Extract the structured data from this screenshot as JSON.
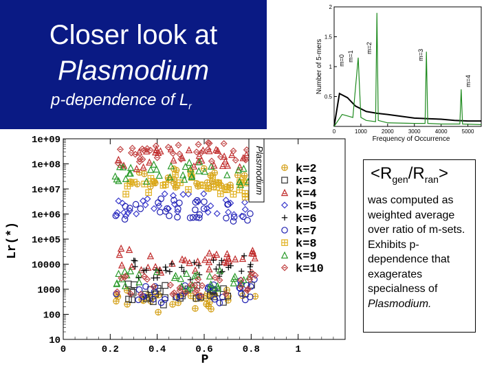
{
  "slide": {
    "title_line1": "Closer look at",
    "title_line2": "Plasmodium",
    "subtitle_main": "p-dependence of L",
    "subtitle_sub": "r",
    "ratio_prefix": "<R",
    "ratio_sub1": "gen",
    "ratio_mid": "/R",
    "ratio_sub2": "ran",
    "ratio_suffix": ">",
    "description": "was computed as weighted average over ratio of m-sets. Exhibits p-dependence that exagerates specialness of",
    "description_em": "Plasmodium."
  },
  "colors": {
    "title_bg": "#0a1a84",
    "k2": "#d4a017",
    "k3": "#2f2f2f",
    "k4": "#c02a2a",
    "k5": "#3a3acc",
    "k6": "#000000",
    "k7": "#1d1db0",
    "k8": "#e0b020",
    "k9": "#2a9a2a",
    "k10": "#c04040"
  },
  "chart_data": [
    {
      "type": "scatter",
      "xlabel": "P",
      "ylabel": "Lr(*)",
      "xlim": [
        0,
        1.2
      ],
      "ylim": [
        10,
        1000000000
      ],
      "yscale": "log",
      "x_ticks": [
        "0",
        "0.2",
        "0.4",
        "0.6",
        "0.8",
        "1"
      ],
      "y_ticks": [
        "1e+09",
        "1e+08",
        "1e+07",
        "1e+06",
        "1e+05",
        "10000",
        "1000",
        "100",
        "10"
      ],
      "annotation": "Plasmodium",
      "legend": [
        "k=2",
        "k=3",
        "k=4",
        "k=5",
        "k=6",
        "k=7",
        "k=8",
        "k=9",
        "k=10"
      ],
      "legend_placement": "right",
      "series": [
        {
          "name": "k=2",
          "symbol": "circle-cross",
          "color_key": "k2",
          "center_log": [
            7.2,
            2.7
          ]
        },
        {
          "name": "k=3",
          "symbol": "square",
          "color_key": "k3",
          "center_log": [
            3.0
          ]
        },
        {
          "name": "k=4",
          "symbol": "triangle-hatched",
          "color_key": "k4",
          "center_log": [
            8.0,
            4.3
          ]
        },
        {
          "name": "k=5",
          "symbol": "diamond",
          "color_key": "k5",
          "center_log": [
            6.2
          ]
        },
        {
          "name": "k=6",
          "symbol": "dash",
          "color_key": "k6",
          "center_log": [
            4.0
          ]
        },
        {
          "name": "k=7",
          "symbol": "open-circle",
          "color_key": "k7",
          "center_log": [
            6.0,
            3.0
          ]
        },
        {
          "name": "k=8",
          "symbol": "hatched-square",
          "color_key": "k8",
          "center_log": [
            7.0
          ]
        },
        {
          "name": "k=9",
          "symbol": "triangle",
          "color_key": "k9",
          "center_log": [
            7.5,
            3.6
          ]
        },
        {
          "name": "k=10",
          "symbol": "diamond-cross",
          "color_key": "k10",
          "center_log": [
            8.3,
            3.3
          ]
        }
      ]
    },
    {
      "type": "line",
      "xlabel": "Frequency of Occurrence",
      "ylabel": "Number of 5-mers",
      "xlim": [
        0,
        5500
      ],
      "ylim": [
        0,
        2
      ],
      "x_ticks": [
        "0",
        "1000",
        "2000",
        "3000",
        "4000",
        "5000"
      ],
      "y_ticks": [
        "2",
        "1.5",
        "1",
        "0.5"
      ],
      "annotations": [
        "m=0",
        "m=1",
        "m=2",
        "m=3",
        "m=4"
      ],
      "series": [
        {
          "name": "black",
          "color": "#000000",
          "x": [
            0,
            200,
            500,
            800,
            1200,
            1600,
            2000,
            2500,
            3000,
            3500,
            4000,
            4500,
            5000,
            5500
          ],
          "y": [
            0,
            0.55,
            0.48,
            0.34,
            0.25,
            0.22,
            0.2,
            0.17,
            0.14,
            0.13,
            0.12,
            0.1,
            0.09,
            0.09
          ]
        },
        {
          "name": "green",
          "color": "#1e8a1e",
          "x": [
            0,
            300,
            700,
            900,
            1000,
            1200,
            1550,
            1600,
            1650,
            2000,
            3000,
            3400,
            3450,
            3500,
            4000,
            4700,
            4750,
            4800,
            5500
          ],
          "y": [
            0,
            0.2,
            0.15,
            1.15,
            0.15,
            0.1,
            0.08,
            1.9,
            0.1,
            0.06,
            0.05,
            0.05,
            1.25,
            0.05,
            0.04,
            0.04,
            0.62,
            0.04,
            0.03
          ]
        }
      ]
    }
  ]
}
